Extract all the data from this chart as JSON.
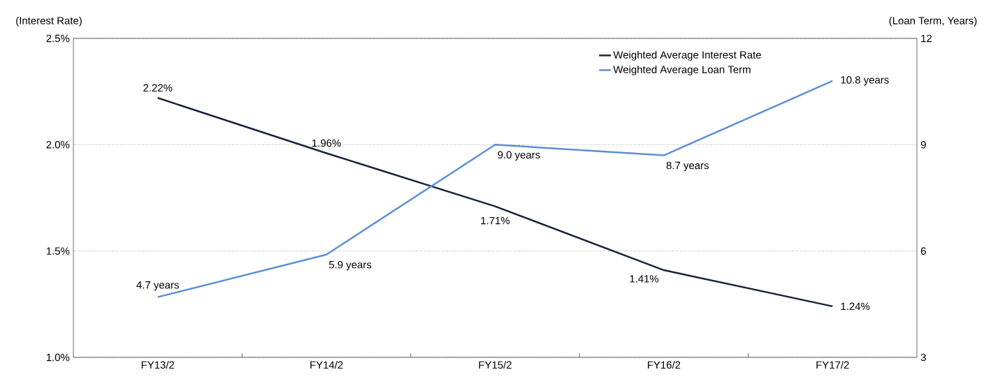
{
  "chart_data": {
    "type": "line",
    "categories": [
      "FY13/2",
      "FY14/2",
      "FY15/2",
      "FY16/2",
      "FY17/2"
    ],
    "ylabel": "(Interest Rate)",
    "y2label": "(Loan Term, Years)",
    "series": [
      {
        "name": "Weighted Average Interest Rate",
        "color": "#17233b",
        "values": [
          2.22,
          1.96,
          1.71,
          1.41,
          1.24
        ],
        "value_labels": [
          "2.22%",
          "1.96%",
          "1.71%",
          "1.41%",
          "1.24%"
        ]
      },
      {
        "name": "Weighted Average Loan Term",
        "color": "#5b8fd6",
        "axis": "y2",
        "values": [
          4.7,
          5.9,
          9.0,
          8.7,
          10.8
        ],
        "value_labels": [
          "4.7 years",
          "5.9 years",
          "9.0 years",
          "8.7 years",
          "10.8 years"
        ]
      }
    ],
    "ylim": [
      1.0,
      2.5
    ],
    "yticks": [
      {
        "value": 1.0,
        "label": "1.0%"
      },
      {
        "value": 1.5,
        "label": "1.5%"
      },
      {
        "value": 2.0,
        "label": "2.0%"
      },
      {
        "value": 2.5,
        "label": "2.5%"
      }
    ],
    "y2lim": [
      3,
      12
    ],
    "y2ticks": [
      3,
      6,
      9,
      12
    ],
    "grid": "y",
    "legend": "top right"
  }
}
